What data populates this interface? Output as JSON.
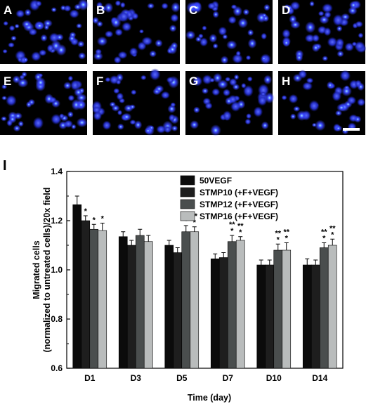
{
  "micrographs": {
    "labels": [
      "A",
      "B",
      "C",
      "D",
      "E",
      "F",
      "G",
      "H"
    ],
    "nucleus_color": "#3a46ff",
    "bright_color": "#9fe8ff",
    "background": "#000000"
  },
  "chart_data": {
    "type": "bar",
    "panel_label": "I",
    "categories": [
      "D1",
      "D3",
      "D5",
      "D7",
      "D10",
      "D14"
    ],
    "xlabel": "Time (day)",
    "ylabel_line1": "Migrated cells",
    "ylabel_line2": "(normalized to untreated cells)/20x field",
    "ylim": [
      0.6,
      1.4
    ],
    "yticks": [
      "0.6",
      "0.8",
      "1.0",
      "1.2",
      "1.4"
    ],
    "grid": false,
    "legend_position": "top-right",
    "series": [
      {
        "name": "50VEGF",
        "color": "#0b0b0b",
        "values": [
          1.265,
          1.135,
          1.1,
          1.045,
          1.02,
          1.02
        ],
        "errors": [
          0.035,
          0.02,
          0.02,
          0.02,
          0.02,
          0.025
        ],
        "sig": [
          "",
          "",
          "",
          "",
          "",
          ""
        ]
      },
      {
        "name": "STMP10 (+F+VEGF)",
        "color": "#1e1e1e",
        "values": [
          1.2,
          1.1,
          1.07,
          1.05,
          1.02,
          1.02
        ],
        "errors": [
          0.02,
          0.02,
          0.02,
          0.02,
          0.02,
          0.02
        ],
        "sig": [
          "*",
          "",
          "",
          "",
          "",
          ""
        ]
      },
      {
        "name": "STMP12 (+F+VEGF)",
        "color": "#4a4e4e",
        "values": [
          1.165,
          1.14,
          1.155,
          1.115,
          1.08,
          1.09
        ],
        "errors": [
          0.02,
          0.025,
          0.025,
          0.025,
          0.025,
          0.02
        ],
        "sig": [
          "*",
          "",
          "**\n*",
          "**\n*",
          "**\n*",
          "**\n*"
        ]
      },
      {
        "name": "STMP16 (+F+VEGF)",
        "color": "#b9bcbc",
        "values": [
          1.16,
          1.115,
          1.155,
          1.12,
          1.08,
          1.1
        ],
        "errors": [
          0.03,
          0.025,
          0.02,
          0.015,
          0.03,
          0.025
        ],
        "sig": [
          "*",
          "",
          "**\n*",
          "**\n*",
          "**\n*",
          "**\n*"
        ]
      }
    ]
  }
}
